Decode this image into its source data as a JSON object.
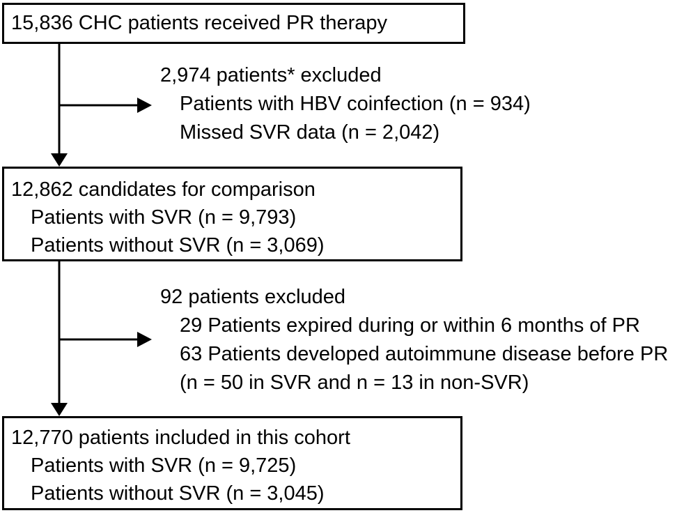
{
  "flowchart": {
    "box1": {
      "title": "15,836 CHC patients received PR therapy"
    },
    "exclusion1": {
      "header": "2,974 patients* excluded",
      "lines": [
        "Patients with HBV coinfection (n = 934)",
        "Missed SVR data (n = 2,042)"
      ]
    },
    "box2": {
      "title": "12,862 candidates for comparison",
      "lines": [
        "Patients with SVR (n = 9,793)",
        "Patients without SVR (n = 3,069)"
      ]
    },
    "exclusion2": {
      "header": "92 patients excluded",
      "lines": [
        "29 Patients expired during or within 6 months of PR",
        "63 Patients developed autoimmune disease before PR",
        "(n = 50 in SVR and n = 13 in non-SVR)"
      ]
    },
    "box3": {
      "title": "12,770 patients included in this cohort",
      "lines": [
        "Patients with SVR (n = 9,725)",
        "Patients without SVR (n = 3,045)"
      ]
    }
  }
}
